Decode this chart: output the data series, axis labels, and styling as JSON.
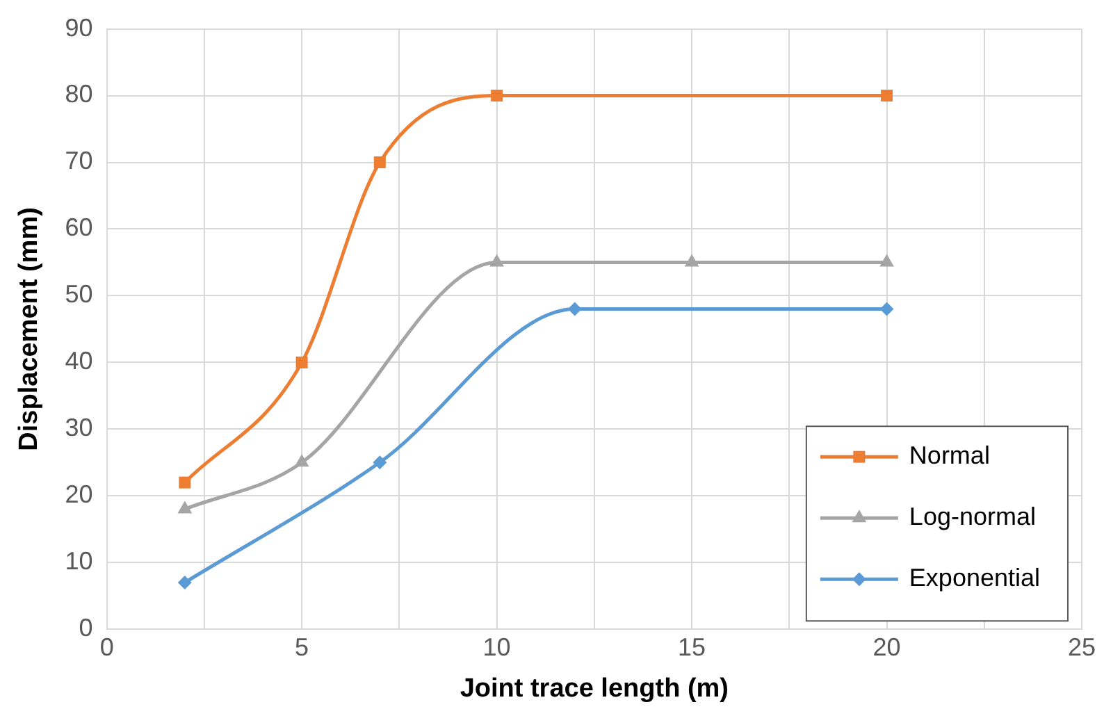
{
  "chart_data": {
    "type": "line",
    "xlabel": "Joint trace length (m)",
    "ylabel": "Displacement (mm)",
    "xlim": [
      0,
      25
    ],
    "xticks": [
      0,
      {
        "value": 2.5,
        "label": null
      },
      5,
      {
        "value": 7.5,
        "label": null
      },
      10,
      {
        "value": 12.5,
        "label": null
      },
      15,
      {
        "value": 17.5,
        "label": null
      },
      20,
      {
        "value": 22.5,
        "label": null
      },
      25
    ],
    "ylim": [
      0,
      90
    ],
    "yticks": [
      0,
      10,
      20,
      30,
      40,
      50,
      60,
      70,
      80,
      90
    ],
    "grid": true,
    "legend": "bottom right",
    "line_style": "solid",
    "series": [
      {
        "name": "Normal",
        "color": "#ed7d31",
        "marker": "square",
        "x": [
          2,
          5,
          7,
          10,
          20
        ],
        "values": [
          22,
          40,
          70,
          80,
          80
        ]
      },
      {
        "name": "Log-normal",
        "color": "#a5a5a5",
        "marker": "triangle",
        "x": [
          2,
          5,
          10,
          15,
          20
        ],
        "values": [
          18,
          25,
          55,
          55,
          55
        ]
      },
      {
        "name": "Exponential",
        "color": "#5b9bd5",
        "marker": "diamond",
        "x": [
          2,
          7,
          12,
          20
        ],
        "values": [
          7,
          25,
          48,
          48
        ]
      }
    ]
  }
}
